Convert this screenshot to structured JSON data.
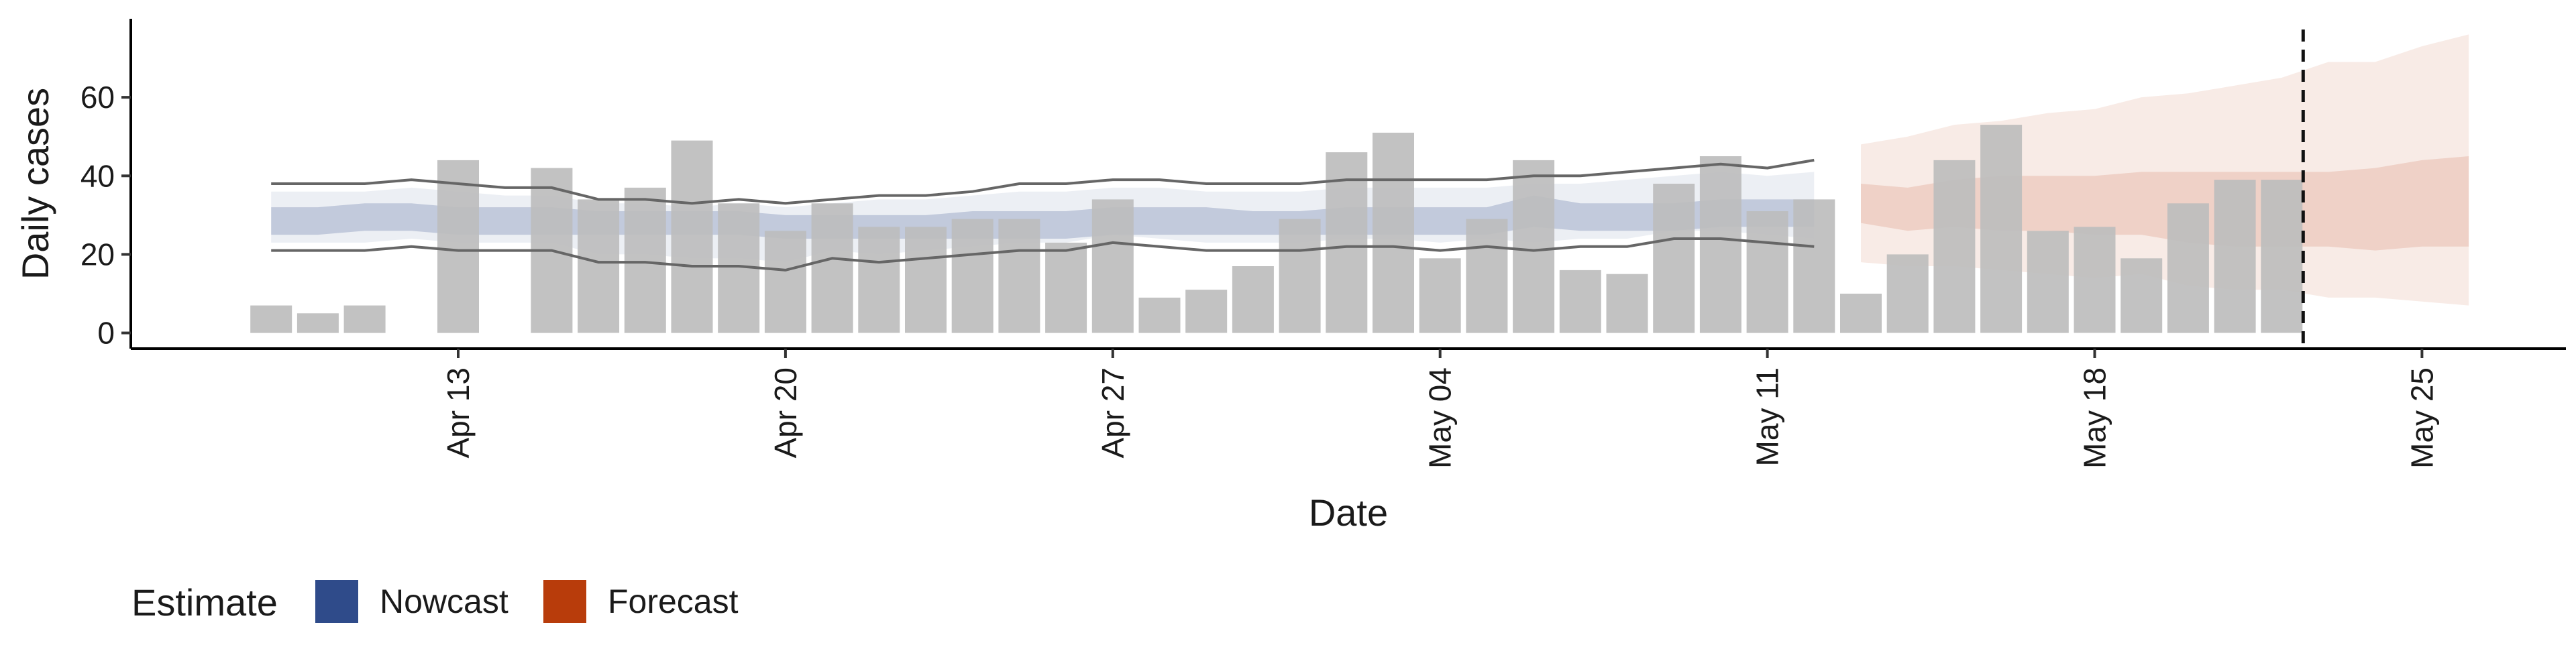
{
  "chart_data": {
    "type": "bar",
    "xlabel": "Date",
    "ylabel": "Daily cases",
    "ylim": [
      -4,
      80
    ],
    "y_ticks": [
      0,
      20,
      40,
      60
    ],
    "x_ticks": [
      "Apr 13",
      "Apr 20",
      "Apr 27",
      "May 04",
      "May 11",
      "May 18",
      "May 25"
    ],
    "grid": false,
    "legend_placement": "bottom-left",
    "legend": {
      "title": "Estimate",
      "items": [
        {
          "label": "Nowcast",
          "color": "#2f4b8a"
        },
        {
          "label": "Forecast",
          "color": "#b83c0b"
        }
      ]
    },
    "colors": {
      "bar": "#bdbdbd",
      "nowcast": "#2f4b8a",
      "forecast": "#b83c0b",
      "outer_lines": "#666666",
      "dashed_line": "#111111"
    },
    "bars": [
      {
        "date": "Apr 09",
        "value": 7
      },
      {
        "date": "Apr 10",
        "value": 5
      },
      {
        "date": "Apr 11",
        "value": 7
      },
      {
        "date": "Apr 13",
        "value": 44
      },
      {
        "date": "Apr 15",
        "value": 42
      },
      {
        "date": "Apr 16",
        "value": 34
      },
      {
        "date": "Apr 17",
        "value": 37
      },
      {
        "date": "Apr 18",
        "value": 49
      },
      {
        "date": "Apr 19",
        "value": 33
      },
      {
        "date": "Apr 20",
        "value": 26
      },
      {
        "date": "Apr 21",
        "value": 33
      },
      {
        "date": "Apr 22",
        "value": 27
      },
      {
        "date": "Apr 23",
        "value": 27
      },
      {
        "date": "Apr 24",
        "value": 29
      },
      {
        "date": "Apr 25",
        "value": 29
      },
      {
        "date": "Apr 26",
        "value": 23
      },
      {
        "date": "Apr 27",
        "value": 34
      },
      {
        "date": "Apr 28",
        "value": 9
      },
      {
        "date": "Apr 29",
        "value": 11
      },
      {
        "date": "Apr 30",
        "value": 17
      },
      {
        "date": "May 01",
        "value": 29
      },
      {
        "date": "May 02",
        "value": 46
      },
      {
        "date": "May 03",
        "value": 51
      },
      {
        "date": "May 04",
        "value": 19
      },
      {
        "date": "May 05",
        "value": 29
      },
      {
        "date": "May 06",
        "value": 44
      },
      {
        "date": "May 07",
        "value": 16
      },
      {
        "date": "May 08",
        "value": 15
      },
      {
        "date": "May 09",
        "value": 38
      },
      {
        "date": "May 10",
        "value": 45
      },
      {
        "date": "May 11",
        "value": 31
      },
      {
        "date": "May 12",
        "value": 34
      },
      {
        "date": "May 13",
        "value": 10
      },
      {
        "date": "May 14",
        "value": 20
      },
      {
        "date": "May 15",
        "value": 44
      },
      {
        "date": "May 16",
        "value": 53
      },
      {
        "date": "May 17",
        "value": 26
      },
      {
        "date": "May 18",
        "value": 27
      },
      {
        "date": "May 19",
        "value": 19
      },
      {
        "date": "May 20",
        "value": 33
      },
      {
        "date": "May 21",
        "value": 39
      },
      {
        "date": "May 22",
        "value": 39
      }
    ],
    "nowcast": {
      "dates": [
        "Apr 09",
        "Apr 10",
        "Apr 11",
        "Apr 12",
        "Apr 13",
        "Apr 14",
        "Apr 15",
        "Apr 16",
        "Apr 17",
        "Apr 18",
        "Apr 19",
        "Apr 20",
        "Apr 21",
        "Apr 22",
        "Apr 23",
        "Apr 24",
        "Apr 25",
        "Apr 26",
        "Apr 27",
        "Apr 28",
        "Apr 29",
        "Apr 30",
        "May 01",
        "May 02",
        "May 03",
        "May 04",
        "May 05",
        "May 06",
        "May 07",
        "May 08",
        "May 09",
        "May 10",
        "May 11",
        "May 12"
      ],
      "upper_line": [
        38,
        38,
        38,
        39,
        38,
        37,
        37,
        34,
        34,
        33,
        34,
        33,
        34,
        35,
        35,
        36,
        38,
        38,
        39,
        39,
        38,
        38,
        38,
        39,
        39,
        39,
        39,
        40,
        40,
        41,
        42,
        43,
        42,
        44
      ],
      "lower_line": [
        21,
        21,
        21,
        22,
        21,
        21,
        21,
        18,
        18,
        17,
        17,
        16,
        19,
        18,
        19,
        20,
        21,
        21,
        23,
        22,
        21,
        21,
        21,
        22,
        22,
        21,
        22,
        21,
        22,
        22,
        24,
        24,
        23,
        22
      ],
      "outer_upper": [
        36,
        36,
        36,
        37,
        36,
        35,
        35,
        33,
        33,
        32,
        33,
        32,
        33,
        34,
        34,
        35,
        36,
        36,
        37,
        37,
        36,
        36,
        36,
        37,
        37,
        37,
        37,
        38,
        38,
        39,
        40,
        41,
        40,
        41
      ],
      "outer_lower": [
        23,
        23,
        23,
        24,
        23,
        23,
        23,
        20,
        20,
        19,
        19,
        18,
        21,
        20,
        21,
        22,
        23,
        23,
        25,
        24,
        23,
        23,
        23,
        24,
        24,
        23,
        24,
        23,
        24,
        24,
        26,
        26,
        25,
        24
      ],
      "inner_upper": [
        32,
        32,
        33,
        33,
        32,
        32,
        32,
        31,
        31,
        31,
        31,
        30,
        30,
        30,
        30,
        31,
        31,
        31,
        32,
        32,
        32,
        31,
        31,
        32,
        32,
        32,
        32,
        35,
        33,
        33,
        33,
        34,
        34,
        34
      ],
      "inner_lower": [
        25,
        25,
        26,
        26,
        25,
        25,
        25,
        25,
        25,
        25,
        25,
        24,
        24,
        24,
        24,
        24,
        24,
        24,
        25,
        25,
        25,
        25,
        25,
        25,
        25,
        25,
        25,
        27,
        26,
        26,
        26,
        27,
        27,
        27
      ]
    },
    "forecast": {
      "dates": [
        "May 13",
        "May 14",
        "May 15",
        "May 16",
        "May 17",
        "May 18",
        "May 19",
        "May 20",
        "May 21",
        "May 22",
        "May 23",
        "May 24",
        "May 25",
        "May 26"
      ],
      "outer_upper": [
        48,
        50,
        53,
        54,
        56,
        57,
        60,
        61,
        63,
        65,
        69,
        69,
        73,
        76
      ],
      "outer_lower": [
        18,
        17,
        17,
        16,
        15,
        14,
        15,
        12,
        11,
        11,
        9,
        9,
        8,
        7
      ],
      "inner_upper": [
        38,
        37,
        39,
        40,
        40,
        40,
        41,
        41,
        41,
        41,
        41,
        42,
        44,
        45
      ],
      "inner_lower": [
        28,
        26,
        27,
        26,
        26,
        25,
        25,
        23,
        22,
        22,
        22,
        21,
        22,
        22
      ]
    },
    "dashed_line_date": "May 22"
  }
}
